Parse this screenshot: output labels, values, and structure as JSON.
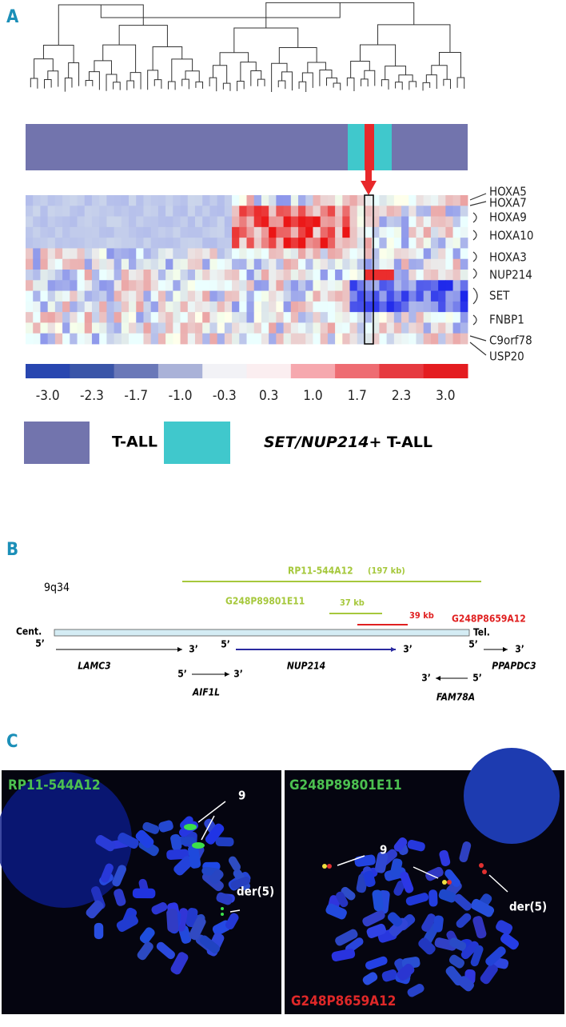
{
  "panel_a": {
    "label": "A",
    "genes": [
      "HOXA5",
      "HOXA7",
      "HOXA9",
      "HOXA10",
      "HOXA3",
      "NUP214",
      "SET",
      "FNBP1",
      "C9orf78",
      "USP20"
    ],
    "scale_labels": [
      "-3.0",
      "-2.3",
      "-1.7",
      "-1.0",
      "-0.3",
      "0.3",
      "1.0",
      "1.7",
      "2.3",
      "3.0"
    ],
    "legend_1": "T-ALL",
    "legend_2_italic": "SET/NUP214",
    "legend_2_rest": "+ T-ALL"
  },
  "panel_b": {
    "label": "B",
    "locus": "9q34",
    "probe_1": "RP11-544A12",
    "probe_1_size": "(197 kb)",
    "probe_2": "G248P89801E11",
    "probe_2_size": "37 kb",
    "probe_3_size": "39 kb",
    "probe_3": "G248P8659A12",
    "cent": "Cent.",
    "tel": "Tel.",
    "five": "5’",
    "three": "3’",
    "genes": [
      "LAMC3",
      "AIF1L",
      "NUP214",
      "PPAPDC3",
      "FAM78A"
    ]
  },
  "panel_c": {
    "label": "C",
    "left_probe": "RP11-544A12",
    "right_probe_top": "G248P89801E11",
    "right_probe_bottom": "G248P8659A12",
    "chr9": "9",
    "der5": "der(5)"
  }
}
